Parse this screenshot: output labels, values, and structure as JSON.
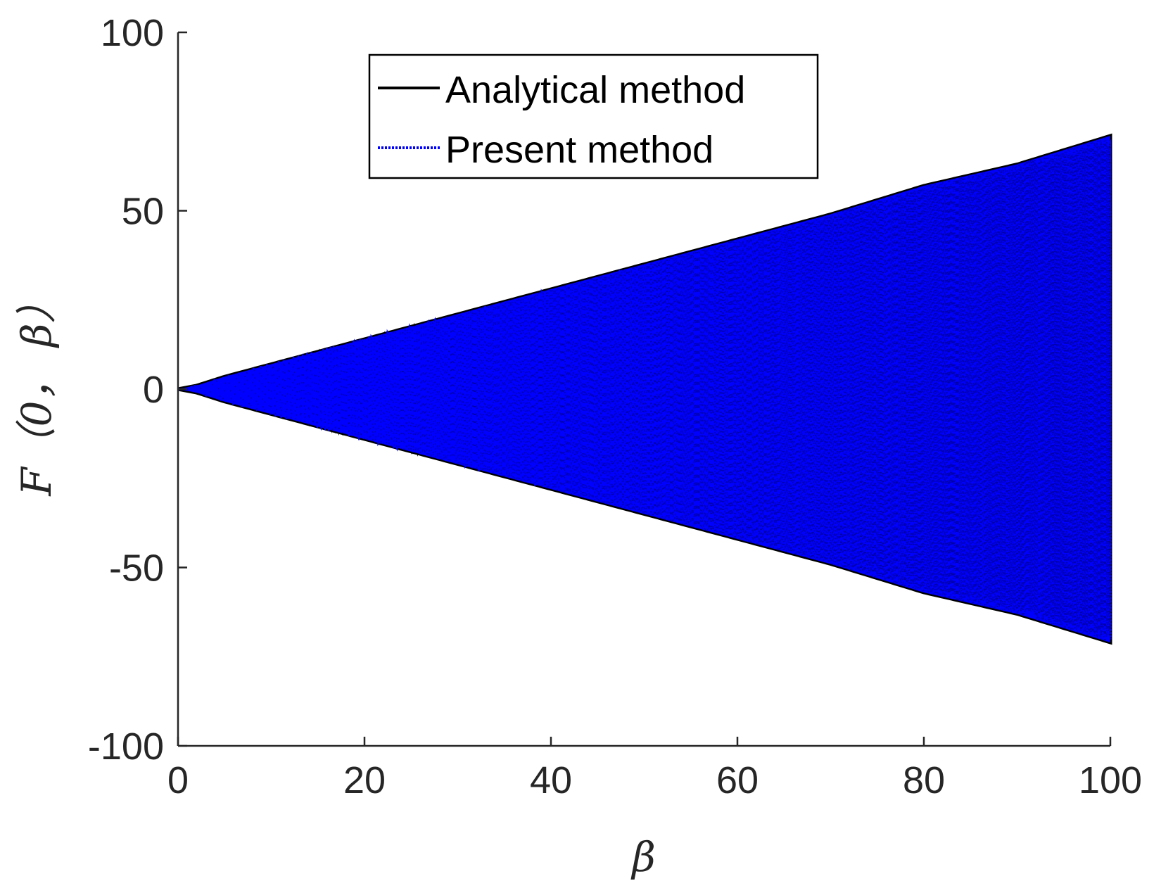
{
  "chart_data": {
    "type": "line",
    "xlabel": "β",
    "ylabel": "F（0， β）",
    "xlim": [
      0,
      100
    ],
    "ylim": [
      -100,
      100
    ],
    "xticks": [
      0,
      20,
      40,
      60,
      80,
      100
    ],
    "xtick_labels": [
      "0",
      "20",
      "40",
      "60",
      "80",
      "100"
    ],
    "yticks": [
      -100,
      -50,
      0,
      50,
      100
    ],
    "ytick_labels": [
      "-100",
      "-50",
      "0",
      "50",
      "100"
    ],
    "grid": false,
    "legend_position": "top-center",
    "series": [
      {
        "name": "Analytical method",
        "color": "#000000",
        "style": "solid",
        "envelope_beta": [
          0,
          2,
          5,
          10,
          20,
          30,
          40,
          50,
          60,
          70,
          80,
          90,
          100
        ],
        "envelope_amplitude": [
          0,
          1,
          3.5,
          7,
          14,
          21,
          28,
          35,
          42,
          49,
          57,
          63,
          71
        ]
      },
      {
        "name": "Present method",
        "color": "#0000ff",
        "style": "dotted",
        "envelope_beta": [
          0,
          2,
          5,
          10,
          20,
          30,
          40,
          50,
          60,
          70,
          80,
          90,
          100
        ],
        "envelope_amplitude": [
          0,
          1,
          3.5,
          7,
          14,
          21,
          28,
          35,
          42,
          49,
          57,
          63,
          71
        ]
      }
    ]
  }
}
